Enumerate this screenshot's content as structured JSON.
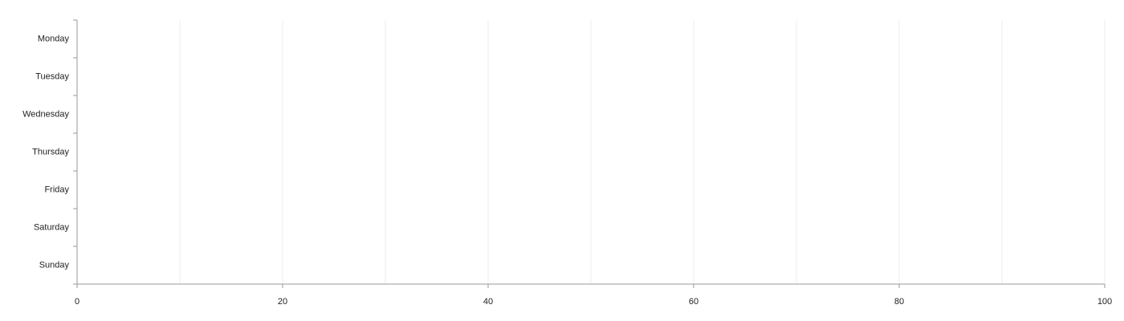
{
  "chart_data": {
    "type": "bar",
    "orientation": "horizontal",
    "title": "",
    "xlabel": "",
    "ylabel": "",
    "categories": [
      "Monday",
      "Tuesday",
      "Wednesday",
      "Thursday",
      "Friday",
      "Saturday",
      "Sunday"
    ],
    "values": [
      0,
      0,
      0,
      0,
      0,
      0,
      0
    ],
    "xlim": [
      0,
      100
    ],
    "x_ticks": [
      0,
      20,
      40,
      60,
      80,
      100
    ],
    "x_gridlines": [
      10,
      20,
      30,
      40,
      50,
      60,
      70,
      80,
      90,
      100
    ],
    "grid": true,
    "legend": "none"
  },
  "colors": {
    "axis": "#999999",
    "grid": "#eeeeee",
    "text": "#222222",
    "bar": "#4e79a7"
  }
}
